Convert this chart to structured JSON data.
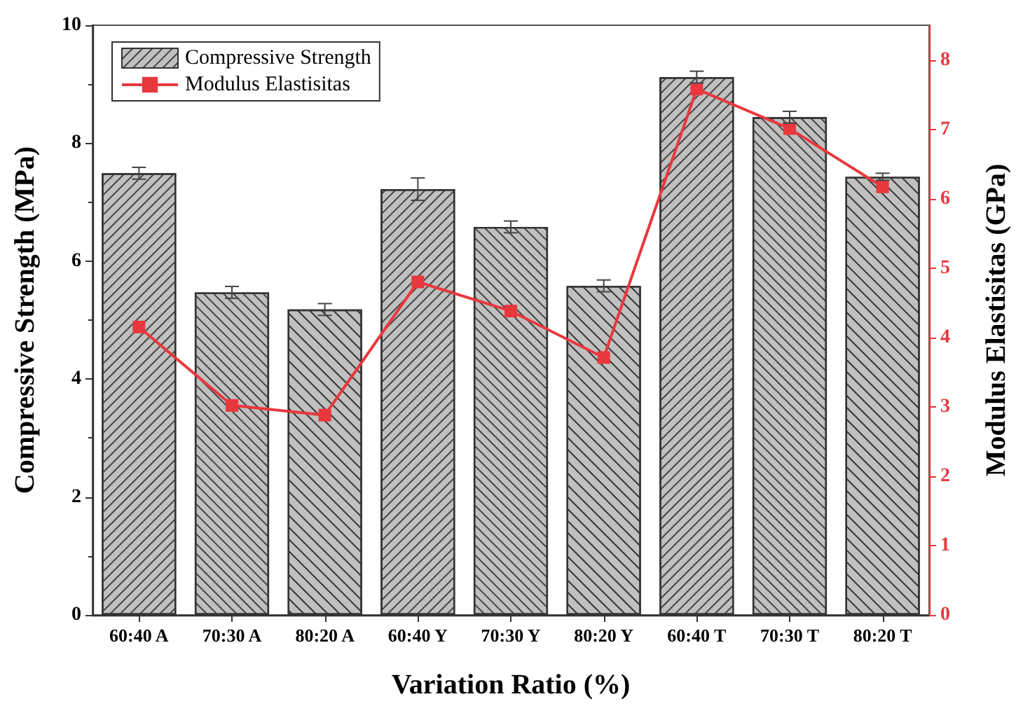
{
  "chart_data": {
    "type": "bar",
    "xlabel": "Variation Ratio (%)",
    "ylabel": "Compressive Strength (MPa)",
    "y2label": "Modulus Elastisitas (GPa)",
    "categories": [
      "60:40 A",
      "70:30 A",
      "80:20 A",
      "60:40 Y",
      "70:30 Y",
      "80:20 Y",
      "60:40 T",
      "70:30 T",
      "80:20 T"
    ],
    "series": [
      {
        "name": "Compressive Strength",
        "color": "#c0c0c0",
        "values": [
          7.49,
          5.47,
          5.18,
          7.22,
          6.58,
          5.58,
          9.12,
          8.44,
          7.43
        ],
        "errors": [
          0.1,
          0.1,
          0.1,
          0.19,
          0.1,
          0.1,
          0.1,
          0.1,
          0.06
        ]
      },
      {
        "name": "Modulus Elastisitas",
        "type": "line",
        "axis": "y2",
        "color": "#e8383d",
        "marker": "square",
        "values": [
          4.15,
          3.02,
          2.88,
          4.8,
          4.38,
          3.71,
          7.58,
          7.01,
          6.17
        ]
      }
    ],
    "ylim": [
      0,
      10
    ],
    "yticks": [
      0,
      2,
      4,
      6,
      8,
      10
    ],
    "y2lim": [
      0,
      8.5
    ],
    "y2ticks": [
      0,
      1,
      2,
      3,
      4,
      5,
      6,
      7,
      8
    ],
    "grid": false,
    "legend": "top left"
  }
}
